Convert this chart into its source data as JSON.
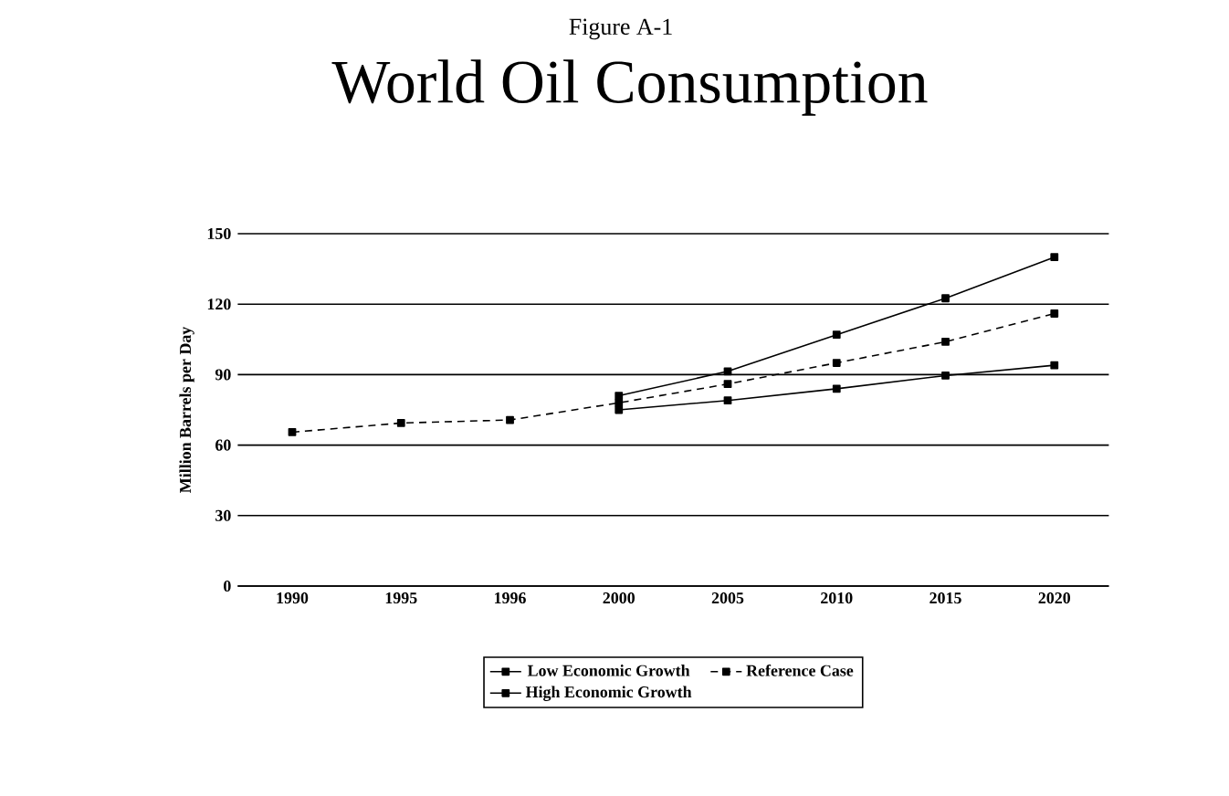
{
  "chart_data": {
    "type": "line",
    "subtitle": "Figure A-1",
    "title": "World Oil Consumption",
    "ylabel": "Million Barrels per Day",
    "categories": [
      "1990",
      "1995",
      "1996",
      "2000",
      "2005",
      "2010",
      "2015",
      "2020"
    ],
    "series": [
      {
        "name": "Low Economic Growth",
        "color": "#000000",
        "line_style": "solid",
        "values": [
          null,
          null,
          null,
          75,
          79,
          84,
          89.6,
          94
        ]
      },
      {
        "name": "Reference Case",
        "color": "#000000",
        "line_style": "dashed",
        "values": [
          65.5,
          69.4,
          70.7,
          78,
          86,
          95,
          104,
          116
        ]
      },
      {
        "name": "High Economic Growth",
        "color": "#000000",
        "line_style": "solid",
        "values": [
          null,
          null,
          null,
          81,
          91.4,
          107,
          122.5,
          140
        ]
      }
    ],
    "ylim": [
      0,
      150
    ],
    "yticks": [
      0,
      30,
      60,
      90,
      120,
      150
    ],
    "grid": "y",
    "legend": "bottom",
    "marker": "square"
  }
}
